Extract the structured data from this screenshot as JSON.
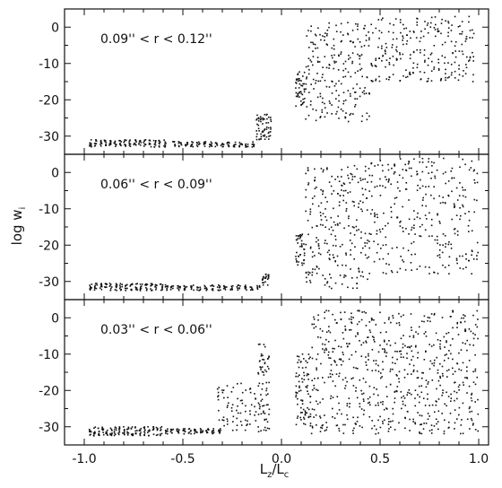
{
  "chart_data": {
    "type": "scatter",
    "xlabel": "L_z/L_c",
    "xlabel_main": "L",
    "xlabel_sub1": "z",
    "xlabel_mid": "/L",
    "xlabel_sub2": "c",
    "ylabel": "log w_i",
    "ylabel_main": "log w",
    "ylabel_sub": "i",
    "xlim": [
      -1.1,
      1.05
    ],
    "xticks": [
      -1.0,
      -0.5,
      0.0,
      0.5,
      1.0
    ],
    "xtick_labels": [
      "-1.0",
      "-0.5",
      "0.0",
      "0.5",
      "1.0"
    ],
    "grid": false,
    "panels": [
      {
        "label": "0.09'' < r < 0.12''",
        "ylim": [
          -35,
          5
        ],
        "yticks": [
          0,
          -10,
          -20,
          -30
        ],
        "ytick_labels": [
          "0",
          "-10",
          "-20",
          "-30"
        ],
        "groups": [
          {
            "x": [
              -0.98,
              -0.58
            ],
            "y": [
              -33,
              -31
            ],
            "n": 130
          },
          {
            "x": [
              -0.56,
              -0.13
            ],
            "y": [
              -33,
              -31.5
            ],
            "n": 110
          },
          {
            "x": [
              -0.13,
              -0.05
            ],
            "y": [
              -31,
              -24
            ],
            "n": 60
          },
          {
            "x": [
              0.07,
              0.12
            ],
            "y": [
              -22,
              -12
            ],
            "n": 45
          },
          {
            "x": [
              0.12,
              0.45
            ],
            "y": [
              -26,
              2
            ],
            "n": 220
          },
          {
            "x": [
              0.45,
              0.98
            ],
            "y": [
              -15,
              3
            ],
            "n": 240
          }
        ]
      },
      {
        "label": "0.06'' < r < 0.09''",
        "ylim": [
          -35,
          5
        ],
        "yticks": [
          0,
          -10,
          -20,
          -30
        ],
        "ytick_labels": [
          "0",
          "-10",
          "-20",
          "-30"
        ],
        "groups": [
          {
            "x": [
              -0.98,
              -0.57
            ],
            "y": [
              -32.5,
              -30.5
            ],
            "n": 130
          },
          {
            "x": [
              -0.57,
              -0.1
            ],
            "y": [
              -32.5,
              -31
            ],
            "n": 110
          },
          {
            "x": [
              -0.1,
              -0.06
            ],
            "y": [
              -31,
              -28
            ],
            "n": 25
          },
          {
            "x": [
              0.07,
              0.12
            ],
            "y": [
              -26,
              -17
            ],
            "n": 40
          },
          {
            "x": [
              0.12,
              0.45
            ],
            "y": [
              -32,
              2
            ],
            "n": 250
          },
          {
            "x": [
              0.45,
              1.0
            ],
            "y": [
              -28,
              4
            ],
            "n": 300
          }
        ]
      },
      {
        "label": "0.03'' < r < 0.06''",
        "ylim": [
          -35,
          5
        ],
        "yticks": [
          0,
          -10,
          -20,
          -30
        ],
        "ytick_labels": [
          "0",
          "-10",
          "-20",
          "-30"
        ],
        "groups": [
          {
            "x": [
              -0.98,
              -0.6
            ],
            "y": [
              -32.5,
              -30
            ],
            "n": 140
          },
          {
            "x": [
              -0.6,
              -0.3
            ],
            "y": [
              -32,
              -30.5
            ],
            "n": 80
          },
          {
            "x": [
              -0.33,
              -0.12
            ],
            "y": [
              -31,
              -18
            ],
            "n": 70
          },
          {
            "x": [
              -0.12,
              -0.06
            ],
            "y": [
              -32,
              -6
            ],
            "n": 70
          },
          {
            "x": [
              0.07,
              0.15
            ],
            "y": [
              -30,
              -10
            ],
            "n": 80
          },
          {
            "x": [
              0.15,
              1.0
            ],
            "y": [
              -32,
              2
            ],
            "n": 650
          }
        ]
      }
    ]
  }
}
